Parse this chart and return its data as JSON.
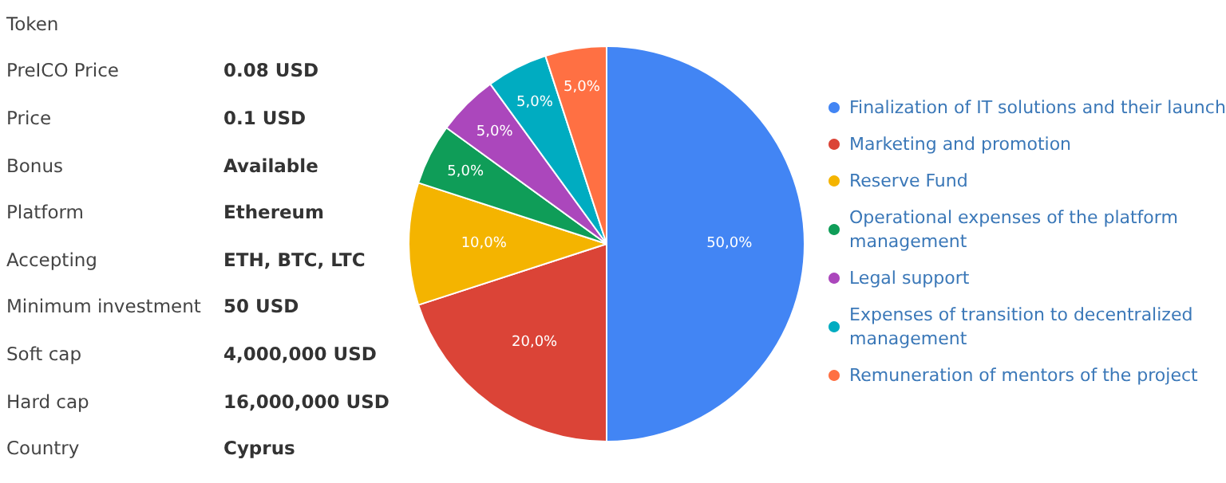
{
  "chart_data": [
    {
      "type": "other",
      "categories": [
        "Token",
        "PreICO Price",
        "Price",
        "Bonus",
        "Platform",
        "Accepting",
        "Minimum investment",
        "Soft cap",
        "Hard cap",
        "Country"
      ],
      "value_labels": [
        null,
        "0.08 USD",
        "0.1 USD",
        "Available",
        "Ethereum",
        "ETH, BTC, LTC",
        "50 USD",
        "4,000,000 USD",
        "16,000,000 USD",
        "Cyprus"
      ]
    },
    {
      "type": "pie",
      "categories": [
        "Finalization of IT solutions and their launch",
        "Marketing and promotion",
        "Reserve Fund",
        "Operational expenses of the platform management",
        "Legal support",
        "Expenses of transition to decentralized management",
        "Remuneration of mentors of the project"
      ],
      "values": [
        50,
        20,
        10,
        5,
        5,
        5,
        5
      ],
      "value_labels": [
        "50,0%",
        "20,0%",
        "10,0%",
        "5,0%",
        "5,0%",
        "5,0%",
        "5,0%"
      ],
      "colors": [
        "#4285f4",
        "#db4437",
        "#f4b400",
        "#0f9d58",
        "#ab47bc",
        "#00acc1",
        "#ff7043"
      ],
      "legend": "right"
    }
  ]
}
